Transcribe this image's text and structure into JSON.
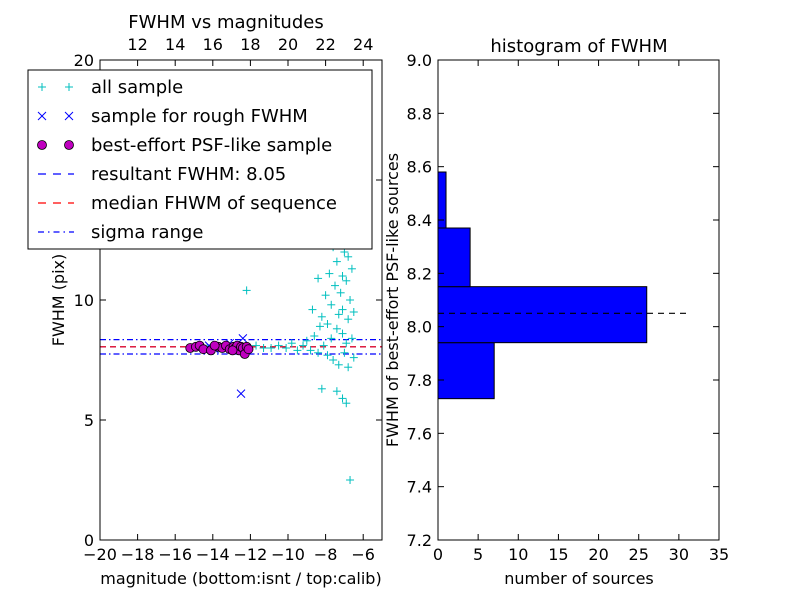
{
  "colors": {
    "all_sample": "#00bfbf",
    "rough_sample": "#0000ff",
    "psf_fill": "#bf00bf",
    "resultant_line": "#0000ff",
    "median_line": "#ff0000",
    "sigma_line": "#0000ff",
    "hist_fill": "#0000ff",
    "axes": "#000000"
  },
  "chart_data": [
    {
      "type": "scatter",
      "title": "FWHM vs magnitudes",
      "xlabel": "magnitude (bottom:isnt / top:calib)",
      "ylabel": "FWHM (pix)",
      "xlim": [
        -20,
        -5
      ],
      "ylim": [
        0,
        20
      ],
      "x_ticks": [
        -20,
        -18,
        -16,
        -14,
        -12,
        -10,
        -8,
        -6
      ],
      "x_tick_labels": [
        "−20",
        "−18",
        "−16",
        "−14",
        "−12",
        "−10",
        "−8",
        "−6"
      ],
      "y_ticks": [
        0,
        5,
        10,
        15,
        20
      ],
      "y_tick_labels": [
        "0",
        "5",
        "10",
        "15",
        "20"
      ],
      "top_axis": {
        "offset": 30,
        "ticks": [
          12,
          14,
          16,
          18,
          20,
          22,
          24
        ],
        "tick_labels": [
          "12",
          "14",
          "16",
          "18",
          "20",
          "22",
          "24"
        ]
      },
      "legend_position": "upper-left",
      "legend": [
        {
          "label": "all sample",
          "marker": "plus"
        },
        {
          "label": "sample for rough FWHM",
          "marker": "x"
        },
        {
          "label": "best-effort PSF-like sample",
          "marker": "circle"
        },
        {
          "label": "resultant FWHM: 8.05",
          "marker": "dashed"
        },
        {
          "label": "median FHWM of sequence",
          "marker": "dashed-red"
        },
        {
          "label": "sigma range",
          "marker": "dashdot"
        }
      ],
      "lines": [
        {
          "name": "resultant FWHM",
          "y": 8.05,
          "style": "dashed"
        },
        {
          "name": "median FHWM of sequence",
          "y": 8.05,
          "style": "dashed"
        },
        {
          "name": "sigma upper",
          "y": 8.35,
          "style": "dashdot"
        },
        {
          "name": "sigma lower",
          "y": 7.75,
          "style": "dashdot"
        }
      ],
      "series": [
        {
          "name": "all sample",
          "marker": "plus",
          "points": [
            [
              -15.1,
              8.0
            ],
            [
              -14.8,
              8.1
            ],
            [
              -14.3,
              8.0
            ],
            [
              -13.8,
              8.05
            ],
            [
              -13.3,
              8.1
            ],
            [
              -12.9,
              8.0
            ],
            [
              -12.5,
              8.05
            ],
            [
              -12.1,
              7.95
            ],
            [
              -11.7,
              8.1
            ],
            [
              -11.3,
              8.0
            ],
            [
              -10.9,
              8.0
            ],
            [
              -10.5,
              8.1
            ],
            [
              -10.1,
              8.0
            ],
            [
              -9.8,
              8.2
            ],
            [
              -9.5,
              7.9
            ],
            [
              -9.2,
              8.1
            ],
            [
              -9.0,
              8.3
            ],
            [
              -8.8,
              7.9
            ],
            [
              -8.6,
              8.5
            ],
            [
              -8.4,
              7.8
            ],
            [
              -8.3,
              8.9
            ],
            [
              -8.2,
              9.3
            ],
            [
              -8.1,
              8.1
            ],
            [
              -8.0,
              10.2
            ],
            [
              -7.9,
              9.0
            ],
            [
              -7.9,
              7.7
            ],
            [
              -7.8,
              11.1
            ],
            [
              -7.8,
              13.0
            ],
            [
              -7.7,
              8.4
            ],
            [
              -7.7,
              9.8
            ],
            [
              -7.6,
              12.2
            ],
            [
              -7.6,
              7.5
            ],
            [
              -7.5,
              10.6
            ],
            [
              -7.5,
              14.1
            ],
            [
              -7.4,
              8.8
            ],
            [
              -7.4,
              11.6
            ],
            [
              -7.3,
              9.4
            ],
            [
              -7.3,
              13.5
            ],
            [
              -7.3,
              7.3
            ],
            [
              -7.2,
              10.3
            ],
            [
              -7.2,
              12.8
            ],
            [
              -7.2,
              15.2
            ],
            [
              -7.1,
              8.6
            ],
            [
              -7.1,
              11.0
            ],
            [
              -7.1,
              9.6
            ],
            [
              -7.0,
              14.0
            ],
            [
              -7.0,
              12.0
            ],
            [
              -7.0,
              7.8
            ],
            [
              -6.9,
              10.8
            ],
            [
              -6.9,
              13.2
            ],
            [
              -6.9,
              8.2
            ],
            [
              -6.8,
              11.8
            ],
            [
              -6.8,
              9.2
            ],
            [
              -6.8,
              7.2
            ],
            [
              -6.7,
              12.5
            ],
            [
              -6.7,
              10.0
            ],
            [
              -6.6,
              8.4
            ],
            [
              -6.6,
              11.3
            ],
            [
              -6.5,
              9.5
            ],
            [
              -6.5,
              7.6
            ],
            [
              -7.5,
              16.5
            ],
            [
              -7.2,
              17.8
            ],
            [
              -7.0,
              19.3
            ],
            [
              -6.9,
              16.2
            ],
            [
              -7.4,
              6.2
            ],
            [
              -7.1,
              5.9
            ],
            [
              -6.9,
              5.7
            ],
            [
              -8.2,
              6.3
            ],
            [
              -6.7,
              2.5
            ],
            [
              -7.8,
              15.0
            ],
            [
              -8.0,
              12.4
            ],
            [
              -8.4,
              10.9
            ],
            [
              -8.7,
              9.6
            ],
            [
              -12.2,
              10.4
            ],
            [
              -8.3,
              14.3
            ],
            [
              -7.6,
              18.6
            ]
          ]
        },
        {
          "name": "sample for rough FWHM",
          "marker": "x",
          "points": [
            [
              -12.5,
              6.1
            ],
            [
              -12.4,
              8.4
            ],
            [
              -13.1,
              8.2
            ],
            [
              -12.8,
              7.9
            ],
            [
              -13.6,
              8.0
            ],
            [
              -14.2,
              8.1
            ],
            [
              -12.2,
              8.0
            ],
            [
              -13.9,
              7.95
            ]
          ]
        },
        {
          "name": "best-effort PSF-like sample",
          "marker": "circle",
          "points": [
            [
              -15.2,
              8.0
            ],
            [
              -14.9,
              8.05
            ],
            [
              -14.7,
              8.1
            ],
            [
              -14.5,
              7.95
            ],
            [
              -14.1,
              7.9
            ],
            [
              -13.7,
              8.05
            ],
            [
              -13.5,
              8.0
            ],
            [
              -13.3,
              8.1
            ],
            [
              -13.1,
              7.95
            ],
            [
              -12.9,
              8.05
            ],
            [
              -12.8,
              8.0
            ],
            [
              -12.7,
              8.1
            ],
            [
              -12.6,
              7.9
            ],
            [
              -12.5,
              8.05
            ],
            [
              -12.4,
              8.0
            ],
            [
              -12.3,
              7.75
            ],
            [
              -12.2,
              8.05
            ],
            [
              -12.1,
              7.95
            ],
            [
              -13.9,
              8.1
            ],
            [
              -12.95,
              7.9
            ]
          ]
        }
      ]
    },
    {
      "type": "bar",
      "orientation": "horizontal",
      "title": "histogram of FWHM",
      "xlabel": "number of sources",
      "ylabel": "FWHM of best-effort PSF-like sources",
      "xlim": [
        0,
        35
      ],
      "ylim": [
        7.2,
        9.0
      ],
      "x_ticks": [
        0,
        5,
        10,
        15,
        20,
        25,
        30,
        35
      ],
      "x_tick_labels": [
        "0",
        "5",
        "10",
        "15",
        "20",
        "25",
        "30",
        "35"
      ],
      "y_ticks": [
        7.2,
        7.4,
        7.6,
        7.8,
        8.0,
        8.2,
        8.4,
        8.6,
        8.8,
        9.0
      ],
      "y_tick_labels": [
        "7.2",
        "7.4",
        "7.6",
        "7.8",
        "8.0",
        "8.2",
        "8.4",
        "8.6",
        "8.8",
        "9.0"
      ],
      "bins": [
        {
          "from": 7.73,
          "to": 7.94,
          "count": 7
        },
        {
          "from": 7.94,
          "to": 8.15,
          "count": 26
        },
        {
          "from": 8.15,
          "to": 8.37,
          "count": 4
        },
        {
          "from": 8.37,
          "to": 8.58,
          "count": 1
        }
      ],
      "reference_line": {
        "y": 8.05,
        "x_to": 31.5,
        "style": "dashed"
      }
    }
  ]
}
